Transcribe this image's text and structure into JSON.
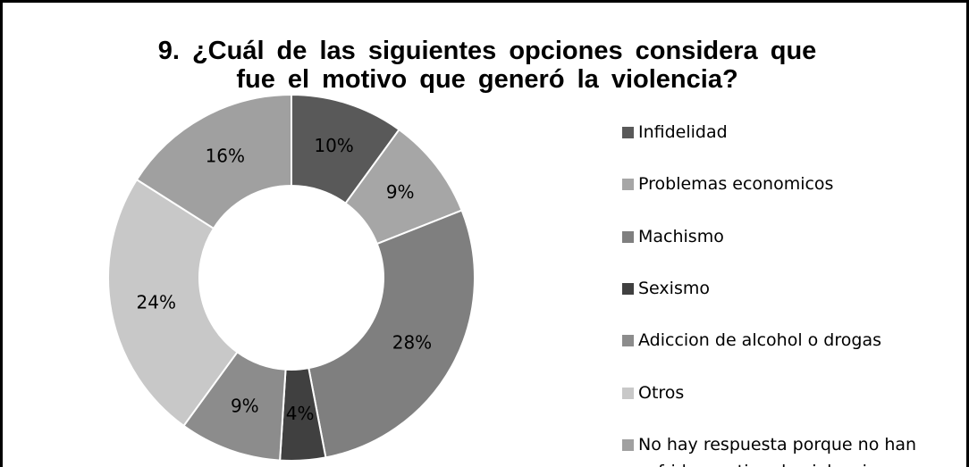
{
  "chart_data": {
    "type": "donut",
    "title": [
      "9. ¿Cuál de las siguientes opciones considera que",
      "fue el motivo que generó la violencia?"
    ],
    "categories": [
      "Infidelidad",
      "Problemas economicos",
      "Machismo",
      "Sexismo",
      "Adiccion de alcohol o drogas",
      "Otros",
      "No hay respuesta porque no han sufrido  ese tipo de violencia"
    ],
    "values": [
      10,
      9,
      28,
      4,
      9,
      24,
      16
    ],
    "value_labels": [
      "10%",
      "9%",
      "28%",
      "4%",
      "9%",
      "24%",
      "16%"
    ],
    "colors": [
      "#595959",
      "#a6a6a6",
      "#7f7f7f",
      "#404040",
      "#8c8c8c",
      "#c8c8c8",
      "#a0a0a0"
    ],
    "legend": "right"
  }
}
